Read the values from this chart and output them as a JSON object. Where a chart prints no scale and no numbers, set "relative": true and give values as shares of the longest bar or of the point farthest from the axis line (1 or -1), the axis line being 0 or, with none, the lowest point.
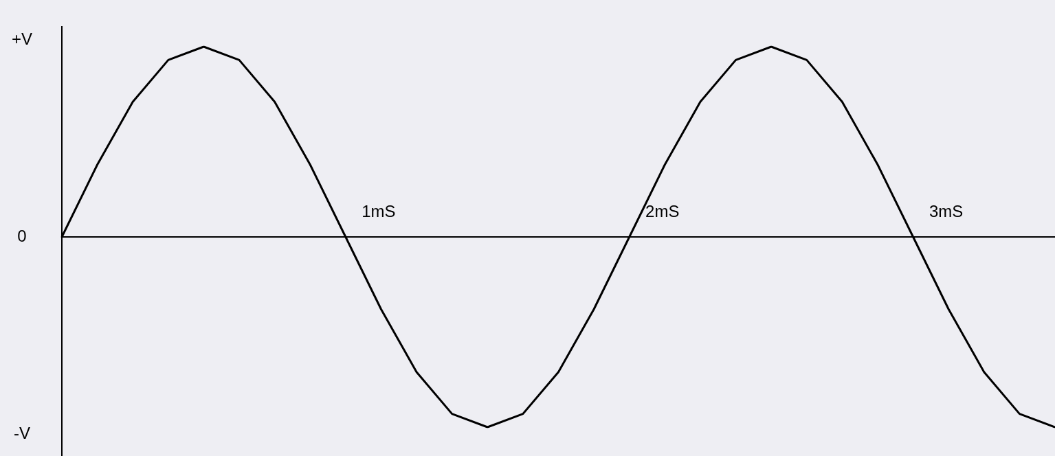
{
  "chart_data": {
    "type": "line",
    "relative": true,
    "categories": [
      null,
      null,
      null,
      null,
      null,
      null,
      null,
      null,
      null,
      null,
      null,
      null,
      null,
      null,
      null,
      null,
      null,
      null,
      null,
      null,
      null,
      null,
      null,
      null,
      null,
      null,
      null,
      null,
      null
    ],
    "series": [
      {
        "color": "#000000",
        "values": [
          0,
          0.38,
          0.71,
          0.93,
          1,
          0.93,
          0.71,
          0.38,
          0,
          -0.38,
          -0.71,
          -0.93,
          -1,
          -0.93,
          -0.71,
          -0.38,
          0,
          0.38,
          0.71,
          0.93,
          1,
          0.93,
          0.71,
          0.38,
          0,
          -0.38,
          -0.71,
          -0.93,
          -1
        ]
      }
    ],
    "annotations": [
      "+V",
      "0",
      "-V",
      "1mS",
      "2mS",
      "3mS"
    ],
    "legend": false,
    "marker": "none",
    "line_style": "solid"
  }
}
